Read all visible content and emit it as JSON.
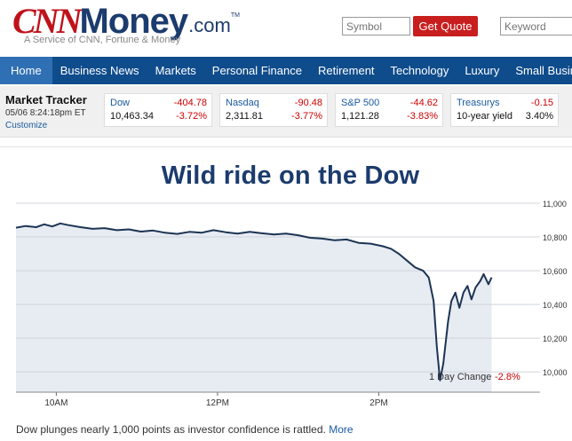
{
  "header": {
    "logo": {
      "cnn": "CNN",
      "money": "Money",
      "com": ".com",
      "tm": "TM"
    },
    "tagline": "A Service of CNN, Fortune & Money",
    "symbol_placeholder": "Symbol",
    "get_quote_label": "Get Quote",
    "keyword_placeholder": "Keyword"
  },
  "nav": {
    "items": [
      "Home",
      "Business News",
      "Markets",
      "Personal Finance",
      "Retirement",
      "Technology",
      "Luxury",
      "Small Busin"
    ]
  },
  "market_tracker": {
    "title": "Market Tracker",
    "timestamp": "05/06 8:24:18pm ET",
    "customize_label": "Customize",
    "quotes": [
      {
        "name": "Dow",
        "change": "-404.78",
        "value": "10,463.34",
        "pct": "-3.72%"
      },
      {
        "name": "Nasdaq",
        "change": "-90.48",
        "value": "2,311.81",
        "pct": "-3.77%"
      },
      {
        "name": "S&P 500",
        "change": "-44.62",
        "value": "1,121.28",
        "pct": "-3.83%"
      },
      {
        "name": "Treasurys",
        "change": "-0.15",
        "value": "10-year yield",
        "pct": "3.40%"
      }
    ]
  },
  "main": {
    "headline": "Wild ride on the Dow",
    "caption": "Dow plunges nearly 1,000 points as investor confidence is rattled.",
    "more_label": "More"
  },
  "chart_data": {
    "type": "area",
    "x_tick_labels": [
      "10AM",
      "12PM",
      "2PM"
    ],
    "x_ticks": [
      10,
      12,
      14
    ],
    "xlim": [
      9.5,
      16
    ],
    "y_tick_labels": [
      "11,000",
      "10,800",
      "10,600",
      "10,400",
      "10,200",
      "10,000"
    ],
    "y_ticks": [
      11000,
      10800,
      10600,
      10400,
      10200,
      10000
    ],
    "ylim": [
      9880,
      11000
    ],
    "annotation": {
      "label": "1 Day Change",
      "value": "-2.8%"
    },
    "colors": {
      "fill": "#e7ebf2",
      "line": "#1c3454",
      "negative": "#cc0000",
      "grid": "#cfd3da"
    },
    "series": [
      {
        "x": [
          9.5,
          9.62,
          9.75,
          9.85,
          9.95,
          10.05,
          10.15,
          10.3,
          10.45,
          10.6,
          10.75,
          10.9,
          11.05,
          11.2,
          11.35,
          11.5,
          11.65,
          11.8,
          11.95,
          12.1,
          12.25,
          12.4,
          12.55,
          12.7,
          12.85,
          13.0,
          13.15,
          13.3,
          13.45,
          13.6,
          13.75,
          13.9,
          14.05,
          14.15,
          14.25,
          14.35,
          14.45,
          14.55,
          14.62,
          14.68,
          14.72,
          14.76,
          14.8,
          14.86,
          14.9,
          14.95,
          15.0,
          15.05,
          15.1,
          15.15,
          15.2,
          15.26,
          15.3,
          15.36,
          15.4
        ],
        "y": [
          10855,
          10865,
          10858,
          10875,
          10862,
          10880,
          10870,
          10858,
          10848,
          10852,
          10840,
          10845,
          10832,
          10838,
          10825,
          10818,
          10830,
          10825,
          10840,
          10828,
          10820,
          10830,
          10822,
          10815,
          10820,
          10810,
          10795,
          10790,
          10780,
          10785,
          10765,
          10760,
          10745,
          10730,
          10700,
          10660,
          10620,
          10600,
          10560,
          10420,
          10150,
          9950,
          10050,
          10300,
          10420,
          10470,
          10380,
          10470,
          10510,
          10430,
          10500,
          10540,
          10580,
          10520,
          10560
        ]
      }
    ]
  }
}
